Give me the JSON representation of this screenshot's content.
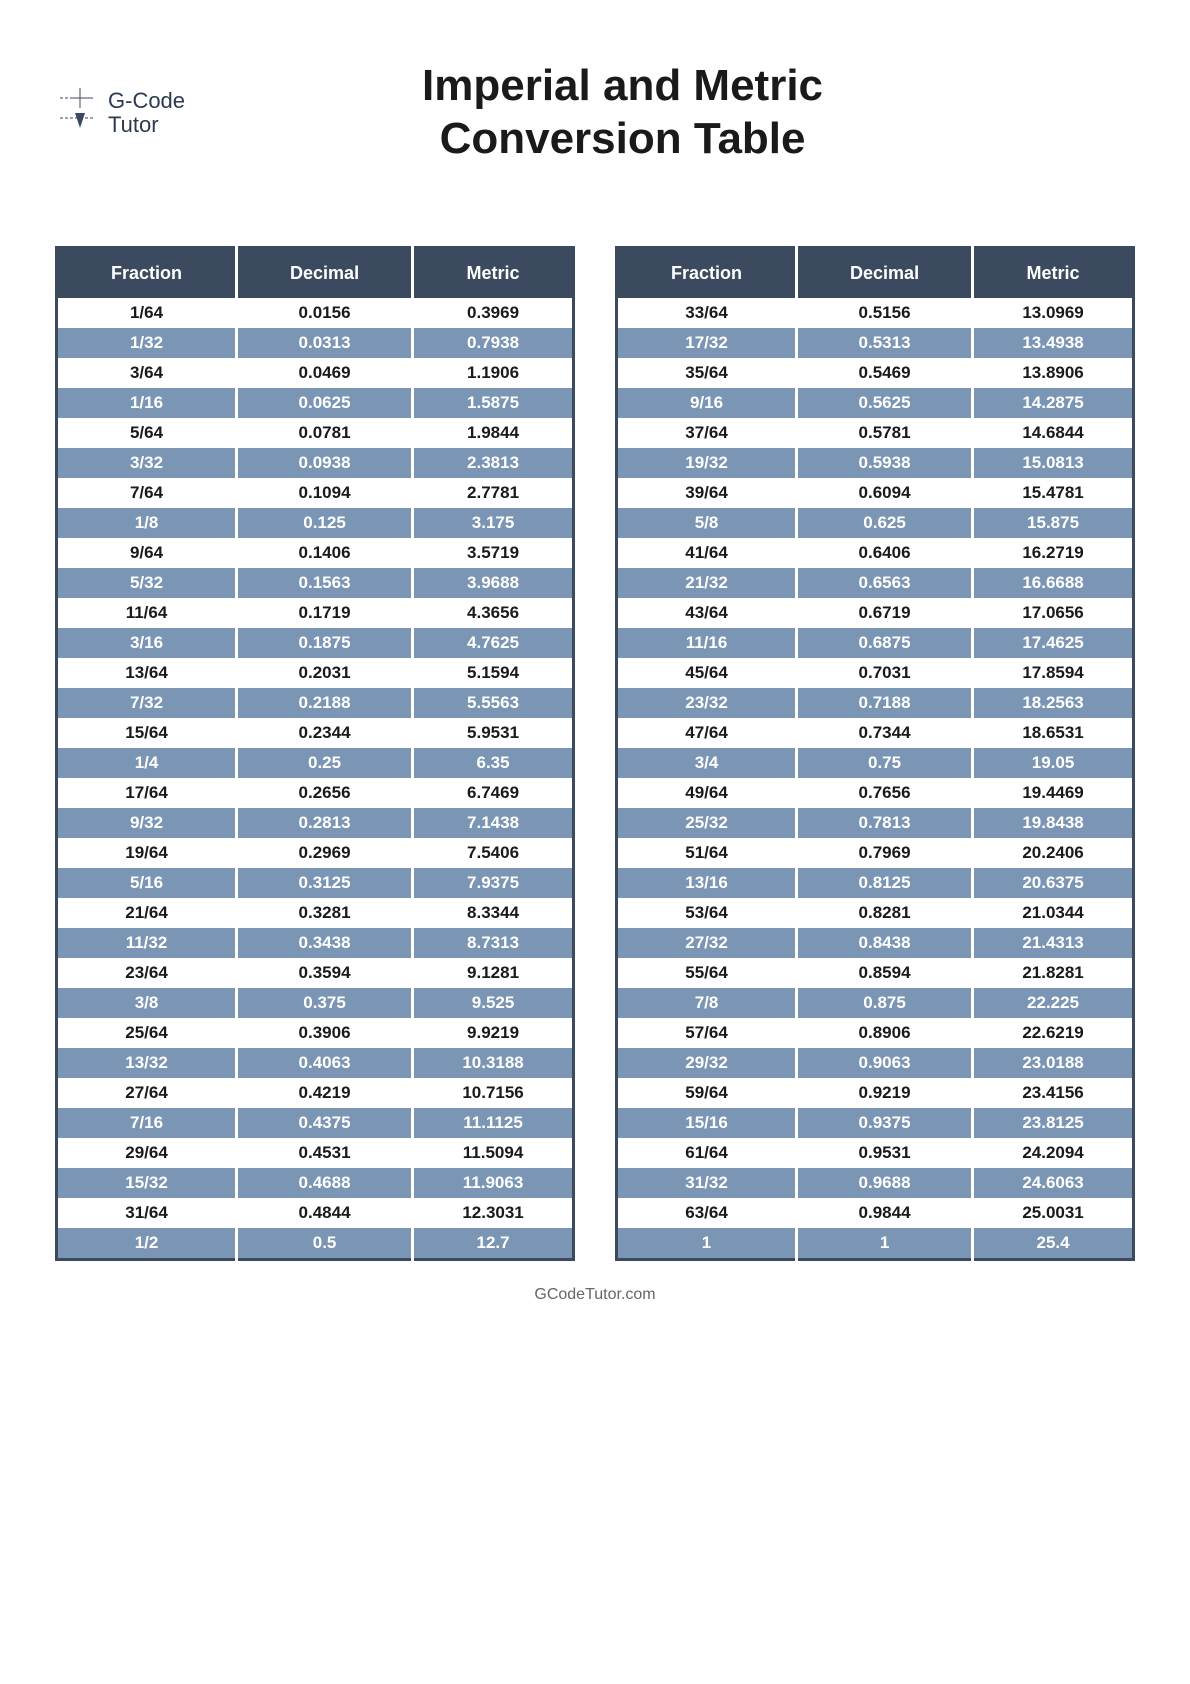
{
  "logo": {
    "line1": "G-Code",
    "line2": "Tutor"
  },
  "title": {
    "line1": "Imperial and Metric",
    "line2": "Conversion Table"
  },
  "headers": {
    "fraction": "Fraction",
    "decimal": "Decimal",
    "metric": "Metric"
  },
  "footer": "GCodeTutor.com",
  "colors": {
    "header_bg": "#3b4a5f",
    "row_blue": "#7b95b5",
    "row_white": "#ffffff",
    "text_dark": "#1a1a1a",
    "text_light": "#ffffff"
  },
  "table_left": [
    {
      "fraction": "1/64",
      "decimal": "0.0156",
      "metric": "0.3969"
    },
    {
      "fraction": "1/32",
      "decimal": "0.0313",
      "metric": "0.7938"
    },
    {
      "fraction": "3/64",
      "decimal": "0.0469",
      "metric": "1.1906"
    },
    {
      "fraction": "1/16",
      "decimal": "0.0625",
      "metric": "1.5875"
    },
    {
      "fraction": "5/64",
      "decimal": "0.0781",
      "metric": "1.9844"
    },
    {
      "fraction": "3/32",
      "decimal": "0.0938",
      "metric": "2.3813"
    },
    {
      "fraction": "7/64",
      "decimal": "0.1094",
      "metric": "2.7781"
    },
    {
      "fraction": "1/8",
      "decimal": "0.125",
      "metric": "3.175"
    },
    {
      "fraction": "9/64",
      "decimal": "0.1406",
      "metric": "3.5719"
    },
    {
      "fraction": "5/32",
      "decimal": "0.1563",
      "metric": "3.9688"
    },
    {
      "fraction": "11/64",
      "decimal": "0.1719",
      "metric": "4.3656"
    },
    {
      "fraction": "3/16",
      "decimal": "0.1875",
      "metric": "4.7625"
    },
    {
      "fraction": "13/64",
      "decimal": "0.2031",
      "metric": "5.1594"
    },
    {
      "fraction": "7/32",
      "decimal": "0.2188",
      "metric": "5.5563"
    },
    {
      "fraction": "15/64",
      "decimal": "0.2344",
      "metric": "5.9531"
    },
    {
      "fraction": "1/4",
      "decimal": "0.25",
      "metric": "6.35"
    },
    {
      "fraction": "17/64",
      "decimal": "0.2656",
      "metric": "6.7469"
    },
    {
      "fraction": "9/32",
      "decimal": "0.2813",
      "metric": "7.1438"
    },
    {
      "fraction": "19/64",
      "decimal": "0.2969",
      "metric": "7.5406"
    },
    {
      "fraction": "5/16",
      "decimal": "0.3125",
      "metric": "7.9375"
    },
    {
      "fraction": "21/64",
      "decimal": "0.3281",
      "metric": "8.3344"
    },
    {
      "fraction": "11/32",
      "decimal": "0.3438",
      "metric": "8.7313"
    },
    {
      "fraction": "23/64",
      "decimal": "0.3594",
      "metric": "9.1281"
    },
    {
      "fraction": "3/8",
      "decimal": "0.375",
      "metric": "9.525"
    },
    {
      "fraction": "25/64",
      "decimal": "0.3906",
      "metric": "9.9219"
    },
    {
      "fraction": "13/32",
      "decimal": "0.4063",
      "metric": "10.3188"
    },
    {
      "fraction": "27/64",
      "decimal": "0.4219",
      "metric": "10.7156"
    },
    {
      "fraction": "7/16",
      "decimal": "0.4375",
      "metric": "11.1125"
    },
    {
      "fraction": "29/64",
      "decimal": "0.4531",
      "metric": "11.5094"
    },
    {
      "fraction": "15/32",
      "decimal": "0.4688",
      "metric": "11.9063"
    },
    {
      "fraction": "31/64",
      "decimal": "0.4844",
      "metric": "12.3031"
    },
    {
      "fraction": "1/2",
      "decimal": "0.5",
      "metric": "12.7"
    }
  ],
  "table_right": [
    {
      "fraction": "33/64",
      "decimal": "0.5156",
      "metric": "13.0969"
    },
    {
      "fraction": "17/32",
      "decimal": "0.5313",
      "metric": "13.4938"
    },
    {
      "fraction": "35/64",
      "decimal": "0.5469",
      "metric": "13.8906"
    },
    {
      "fraction": "9/16",
      "decimal": "0.5625",
      "metric": "14.2875"
    },
    {
      "fraction": "37/64",
      "decimal": "0.5781",
      "metric": "14.6844"
    },
    {
      "fraction": "19/32",
      "decimal": "0.5938",
      "metric": "15.0813"
    },
    {
      "fraction": "39/64",
      "decimal": "0.6094",
      "metric": "15.4781"
    },
    {
      "fraction": "5/8",
      "decimal": "0.625",
      "metric": "15.875"
    },
    {
      "fraction": "41/64",
      "decimal": "0.6406",
      "metric": "16.2719"
    },
    {
      "fraction": "21/32",
      "decimal": "0.6563",
      "metric": "16.6688"
    },
    {
      "fraction": "43/64",
      "decimal": "0.6719",
      "metric": "17.0656"
    },
    {
      "fraction": "11/16",
      "decimal": "0.6875",
      "metric": "17.4625"
    },
    {
      "fraction": "45/64",
      "decimal": "0.7031",
      "metric": "17.8594"
    },
    {
      "fraction": "23/32",
      "decimal": "0.7188",
      "metric": "18.2563"
    },
    {
      "fraction": "47/64",
      "decimal": "0.7344",
      "metric": "18.6531"
    },
    {
      "fraction": "3/4",
      "decimal": "0.75",
      "metric": "19.05"
    },
    {
      "fraction": "49/64",
      "decimal": "0.7656",
      "metric": "19.4469"
    },
    {
      "fraction": "25/32",
      "decimal": "0.7813",
      "metric": "19.8438"
    },
    {
      "fraction": "51/64",
      "decimal": "0.7969",
      "metric": "20.2406"
    },
    {
      "fraction": "13/16",
      "decimal": "0.8125",
      "metric": "20.6375"
    },
    {
      "fraction": "53/64",
      "decimal": "0.8281",
      "metric": "21.0344"
    },
    {
      "fraction": "27/32",
      "decimal": "0.8438",
      "metric": "21.4313"
    },
    {
      "fraction": "55/64",
      "decimal": "0.8594",
      "metric": "21.8281"
    },
    {
      "fraction": "7/8",
      "decimal": "0.875",
      "metric": "22.225"
    },
    {
      "fraction": "57/64",
      "decimal": "0.8906",
      "metric": "22.6219"
    },
    {
      "fraction": "29/32",
      "decimal": "0.9063",
      "metric": "23.0188"
    },
    {
      "fraction": "59/64",
      "decimal": "0.9219",
      "metric": "23.4156"
    },
    {
      "fraction": "15/16",
      "decimal": "0.9375",
      "metric": "23.8125"
    },
    {
      "fraction": "61/64",
      "decimal": "0.9531",
      "metric": "24.2094"
    },
    {
      "fraction": "31/32",
      "decimal": "0.9688",
      "metric": "24.6063"
    },
    {
      "fraction": "63/64",
      "decimal": "0.9844",
      "metric": "25.0031"
    },
    {
      "fraction": "1",
      "decimal": "1",
      "metric": "25.4"
    }
  ]
}
